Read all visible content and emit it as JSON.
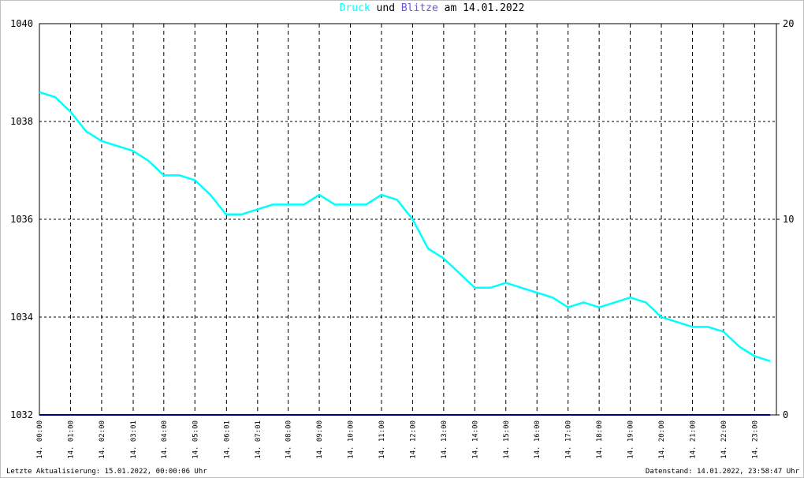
{
  "chart_data": {
    "type": "line",
    "title_parts": [
      "und",
      "am 14.01.2022"
    ],
    "footer_left": "Letzte Aktualisierung: 15.01.2022, 00:00:06 Uhr",
    "footer_right": "Datenstand: 14.01.2022, 23:58:47 Uhr",
    "x": [
      0,
      30,
      60,
      90,
      120,
      150,
      180,
      210,
      240,
      270,
      300,
      330,
      360,
      390,
      420,
      450,
      480,
      510,
      540,
      570,
      600,
      630,
      660,
      690,
      720,
      750,
      780,
      810,
      840,
      870,
      900,
      930,
      960,
      990,
      1020,
      1050,
      1080,
      1110,
      1140,
      1170,
      1200,
      1230,
      1260,
      1290,
      1320,
      1350,
      1380,
      1410
    ],
    "xlim": [
      0,
      1422
    ],
    "xticks": [
      {
        "value": 0,
        "label": "14. 00:00"
      },
      {
        "value": 60,
        "label": "14. 01:00"
      },
      {
        "value": 120,
        "label": "14. 02:00"
      },
      {
        "value": 181,
        "label": "14. 03:01"
      },
      {
        "value": 240,
        "label": "14. 04:00"
      },
      {
        "value": 300,
        "label": "14. 05:00"
      },
      {
        "value": 361,
        "label": "14. 06:01"
      },
      {
        "value": 421,
        "label": "14. 07:01"
      },
      {
        "value": 480,
        "label": "14. 08:00"
      },
      {
        "value": 540,
        "label": "14. 09:00"
      },
      {
        "value": 600,
        "label": "14. 10:00"
      },
      {
        "value": 660,
        "label": "14. 11:00"
      },
      {
        "value": 720,
        "label": "14. 12:00"
      },
      {
        "value": 780,
        "label": "14. 13:00"
      },
      {
        "value": 840,
        "label": "14. 14:00"
      },
      {
        "value": 900,
        "label": "14. 15:00"
      },
      {
        "value": 960,
        "label": "14. 16:00"
      },
      {
        "value": 1020,
        "label": "14. 17:00"
      },
      {
        "value": 1080,
        "label": "14. 18:00"
      },
      {
        "value": 1140,
        "label": "14. 19:00"
      },
      {
        "value": 1200,
        "label": "14. 20:00"
      },
      {
        "value": 1260,
        "label": "14. 21:00"
      },
      {
        "value": 1320,
        "label": "14. 22:00"
      },
      {
        "value": 1380,
        "label": "14. 23:00"
      }
    ],
    "ylim": [
      1032,
      1040
    ],
    "yticks": [
      1032,
      1034,
      1036,
      1038,
      1040
    ],
    "y2lim": [
      0,
      20
    ],
    "y2ticks": [
      0,
      10,
      20
    ],
    "grid": true,
    "series": [
      {
        "name": "Druck",
        "color": "#00ffff",
        "values": [
          1038.6,
          1038.5,
          1038.2,
          1037.8,
          1037.6,
          1037.5,
          1037.4,
          1037.2,
          1036.9,
          1036.9,
          1036.8,
          1036.5,
          1036.1,
          1036.1,
          1036.2,
          1036.3,
          1036.3,
          1036.3,
          1036.5,
          1036.3,
          1036.3,
          1036.3,
          1036.5,
          1036.4,
          1036.0,
          1035.4,
          1035.2,
          1034.9,
          1034.6,
          1034.6,
          1034.7,
          1034.6,
          1034.5,
          1034.4,
          1034.2,
          1034.3,
          1034.2,
          1034.3,
          1034.4,
          1034.3,
          1034.0,
          1033.9,
          1033.8,
          1033.8,
          1033.7,
          1033.4,
          1033.2,
          1033.1
        ]
      },
      {
        "name": "Blitze",
        "color": "#000080",
        "axis": "y2",
        "values": [
          0,
          0,
          0,
          0,
          0,
          0,
          0,
          0,
          0,
          0,
          0,
          0,
          0,
          0,
          0,
          0,
          0,
          0,
          0,
          0,
          0,
          0,
          0,
          0,
          0,
          0,
          0,
          0,
          0,
          0,
          0,
          0,
          0,
          0,
          0,
          0,
          0,
          0,
          0,
          0,
          0,
          0,
          0,
          0,
          0,
          0,
          0,
          0
        ]
      }
    ]
  }
}
